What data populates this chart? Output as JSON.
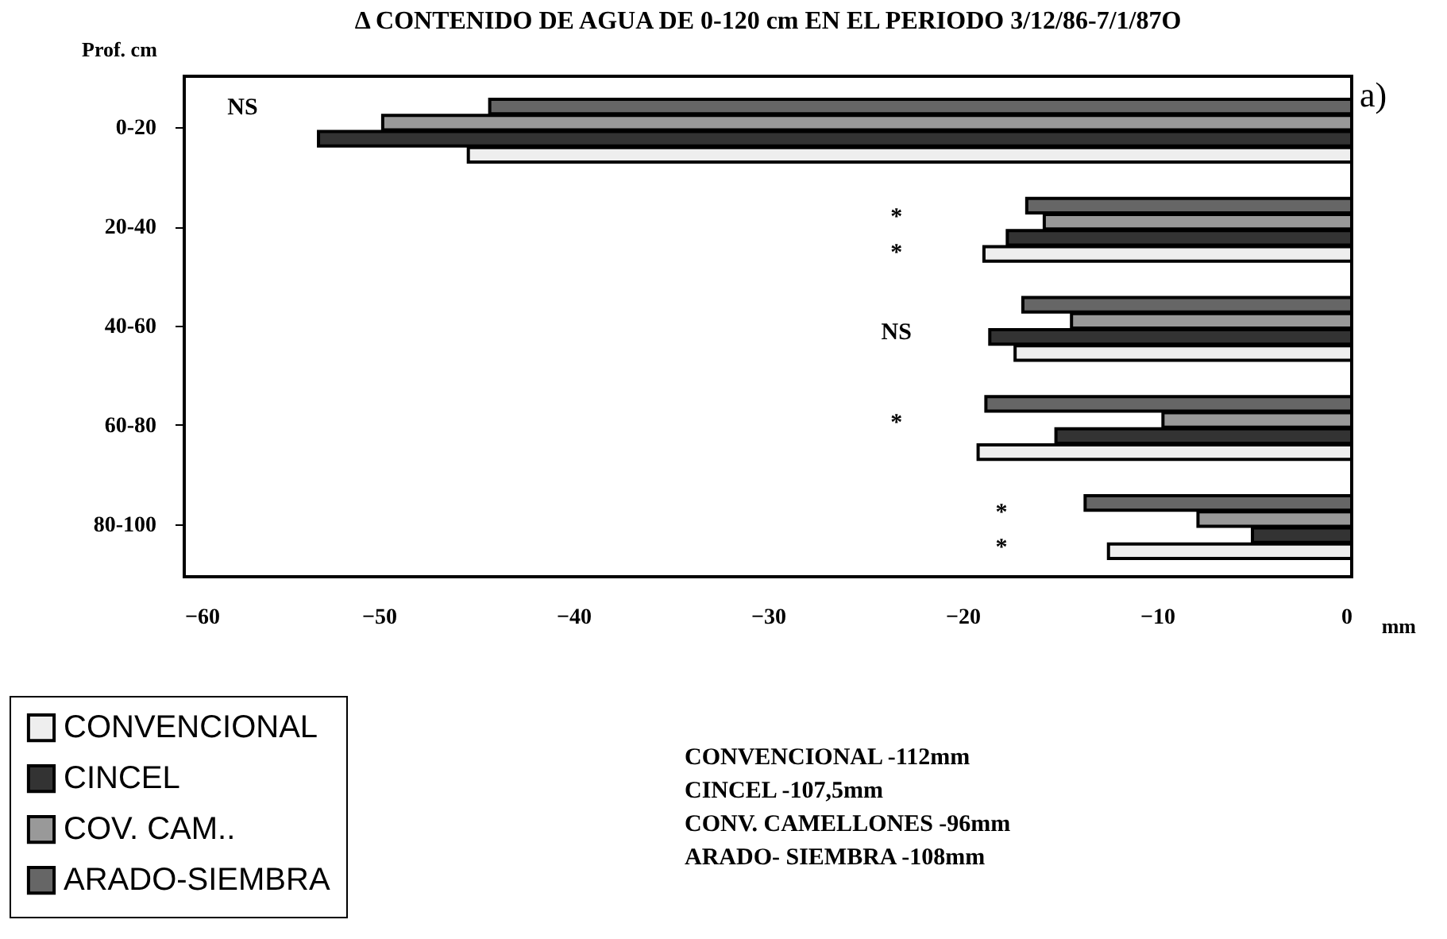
{
  "chart_data": {
    "type": "bar",
    "orientation": "horizontal",
    "title": "Δ CONTENIDO DE AGUA DE 0-120 cm EN EL PERIODO 3/12/86-7/1/87O",
    "ylabel": "Prof. cm",
    "xlabel": "mm",
    "categories": [
      "0-20",
      "20-40",
      "40-60",
      "60-80",
      "80-100"
    ],
    "series": [
      {
        "name": "CONVENCIONAL",
        "color": "#eeeeee",
        "values": [
          -45.4,
          -18.9,
          -17.3,
          -19.2,
          -12.5
        ]
      },
      {
        "name": "CINCEL",
        "color": "#333333",
        "values": [
          -53.1,
          -17.7,
          -18.6,
          -15.2,
          -5.1
        ]
      },
      {
        "name": "COV. CAM..",
        "color": "#999999",
        "values": [
          -49.8,
          -15.8,
          -14.4,
          -9.7,
          -7.9
        ]
      },
      {
        "name": "ARADO-SIEMBRA",
        "color": "#666666",
        "values": [
          -44.3,
          -16.7,
          -16.9,
          -18.8,
          -13.7
        ]
      }
    ],
    "xlim": [
      -60,
      0
    ],
    "xticks": [
      -60,
      -50,
      -40,
      -30,
      -20,
      -10,
      0
    ],
    "grid": false,
    "legend": "bottom left",
    "annotations": [
      "NS",
      "*",
      "*",
      "NS",
      "*",
      "*",
      "*",
      "a)",
      "CONVENCIONAL -112mm",
      "CINCEL -107,5mm",
      "CONV. CAMELLONES -96mm",
      "ARADO- SIEMBRA -108mm"
    ]
  }
}
